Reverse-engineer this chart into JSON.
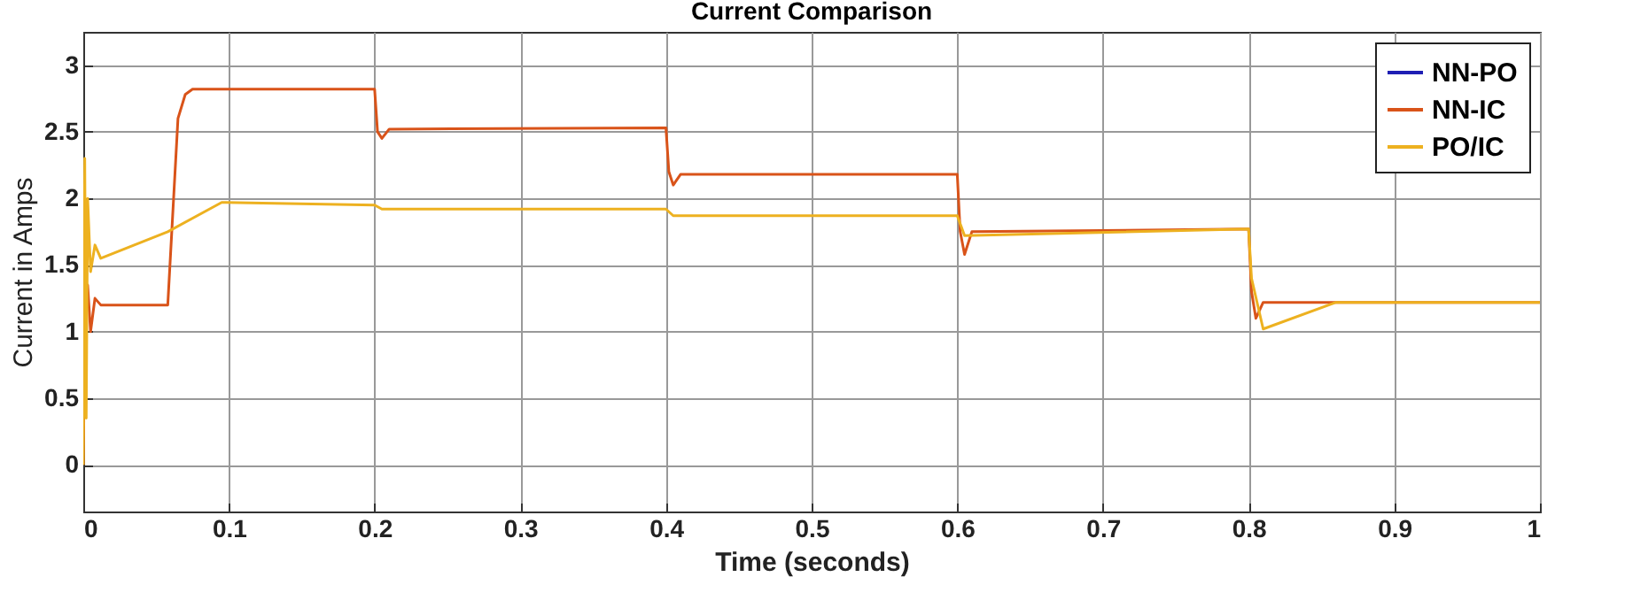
{
  "chart_data": {
    "type": "line",
    "title": "Current Comparison",
    "xlabel": "Time (seconds)",
    "ylabel": "Current in Amps",
    "xlim": [
      0,
      1
    ],
    "xticks": [
      0,
      0.1,
      0.2,
      0.3,
      0.4,
      0.5,
      0.6,
      0.7,
      0.8,
      0.9,
      1
    ],
    "ylim": [
      -0.35,
      3.25
    ],
    "yticks": [
      0,
      0.5,
      1,
      1.5,
      2,
      2.5,
      3
    ],
    "grid": true,
    "legend": "top right",
    "line_style": "solid",
    "series": [
      {
        "name": "NN-PO",
        "color": "#1f1fb4"
      },
      {
        "name": "NN-IC",
        "color": "#d95319",
        "x": [
          0,
          0.001,
          0.003,
          0.005,
          0.008,
          0.012,
          0.058,
          0.065,
          0.07,
          0.075,
          0.2,
          0.202,
          0.205,
          0.21,
          0.4,
          0.402,
          0.405,
          0.41,
          0.6,
          0.602,
          0.605,
          0.61,
          0.8,
          0.802,
          0.805,
          0.81,
          1
        ],
        "values": [
          0,
          1.0,
          1.35,
          1.0,
          1.25,
          1.2,
          1.2,
          2.6,
          2.78,
          2.82,
          2.82,
          2.5,
          2.45,
          2.52,
          2.53,
          2.2,
          2.1,
          2.18,
          2.18,
          1.75,
          1.58,
          1.75,
          1.77,
          1.3,
          1.1,
          1.22,
          1.22
        ]
      },
      {
        "name": "PO/IC",
        "color": "#edb120",
        "x": [
          0,
          0.001,
          0.002,
          0.003,
          0.005,
          0.008,
          0.012,
          0.058,
          0.095,
          0.2,
          0.205,
          0.4,
          0.405,
          0.6,
          0.605,
          0.8,
          0.802,
          0.81,
          0.86,
          1
        ],
        "values": [
          0,
          2.3,
          0.35,
          2.0,
          1.45,
          1.65,
          1.55,
          1.75,
          1.97,
          1.95,
          1.92,
          1.92,
          1.87,
          1.87,
          1.72,
          1.77,
          1.4,
          1.02,
          1.22,
          1.22
        ]
      }
    ]
  }
}
